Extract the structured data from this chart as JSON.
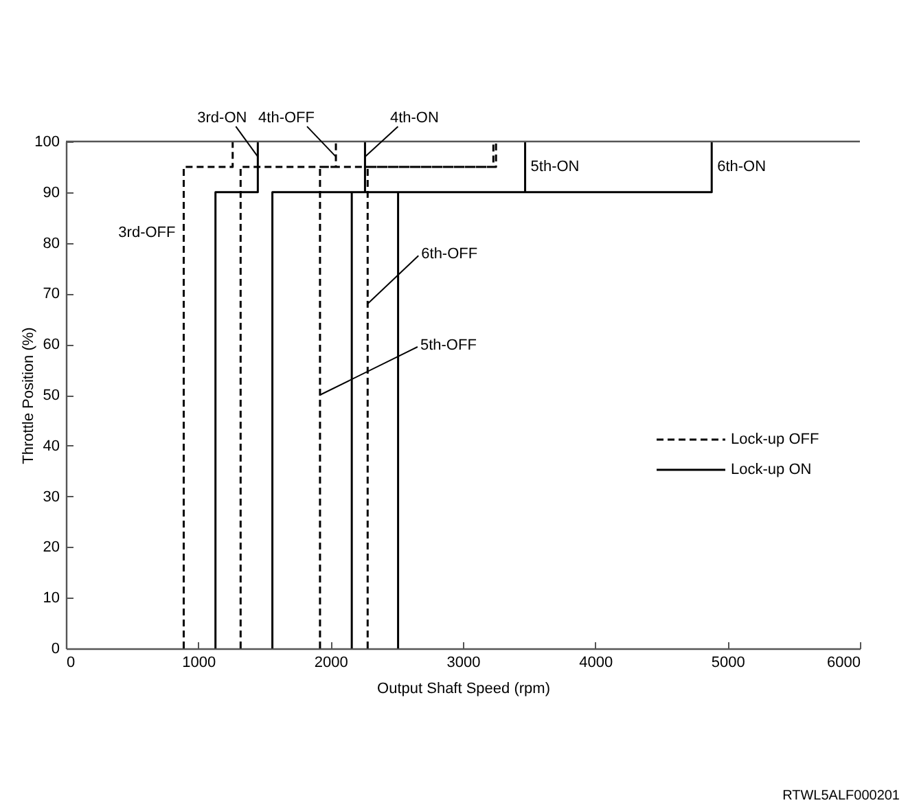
{
  "chart_data": {
    "type": "line",
    "xlabel": "Output Shaft Speed (rpm)",
    "ylabel": "Throttle Position (%)",
    "xlim": [
      0,
      6000
    ],
    "xticks": [
      0,
      1000,
      2000,
      3000,
      4000,
      5000,
      6000
    ],
    "ylim": [
      0,
      100
    ],
    "yticks": [
      0,
      10,
      20,
      30,
      40,
      50,
      60,
      70,
      80,
      90,
      100
    ],
    "legend": "right",
    "series": [
      {
        "name": "Lock-up OFF",
        "color": "#000000",
        "line_style": "dashed",
        "x": [
          890,
          890,
          1260,
          1260,
          null,
          1320,
          1320,
          2040,
          2040,
          null,
          1920,
          1920,
          3230,
          3230,
          null,
          2280,
          2280,
          3250,
          3250
        ],
        "values": [
          0,
          95,
          95,
          100,
          null,
          0,
          95,
          95,
          100,
          null,
          0,
          95,
          95,
          100,
          null,
          0,
          95,
          95,
          100
        ]
      },
      {
        "name": "Lock-up ON",
        "color": "#000000",
        "line_style": "solid",
        "x": [
          1130,
          1130,
          1450,
          1450,
          null,
          1560,
          1560,
          2260,
          2260,
          null,
          2160,
          2160,
          3470,
          3470,
          null,
          2510,
          2510,
          4880,
          4880
        ],
        "values": [
          0,
          90,
          90,
          100,
          null,
          0,
          90,
          90,
          100,
          null,
          0,
          90,
          90,
          100,
          null,
          0,
          90,
          90,
          100
        ]
      }
    ],
    "ref_lines": [
      {
        "axis": "y",
        "value": 100,
        "color": "#555555"
      }
    ],
    "annotations": [
      {
        "text": "3rd-OFF",
        "x": 890,
        "y": 82
      },
      {
        "text": "3rd-ON",
        "x": 1450,
        "y": 97
      },
      {
        "text": "4th-OFF",
        "x": 2040,
        "y": 97
      },
      {
        "text": "4th-ON",
        "x": 2260,
        "y": 97
      },
      {
        "text": "5th-OFF",
        "x": 1920,
        "y": 50
      },
      {
        "text": "5th-ON",
        "x": 3470,
        "y": 95
      },
      {
        "text": "6th-OFF",
        "x": 2280,
        "y": 68
      },
      {
        "text": "6th-ON",
        "x": 4880,
        "y": 95
      },
      "RTWL5ALF000201"
    ]
  }
}
